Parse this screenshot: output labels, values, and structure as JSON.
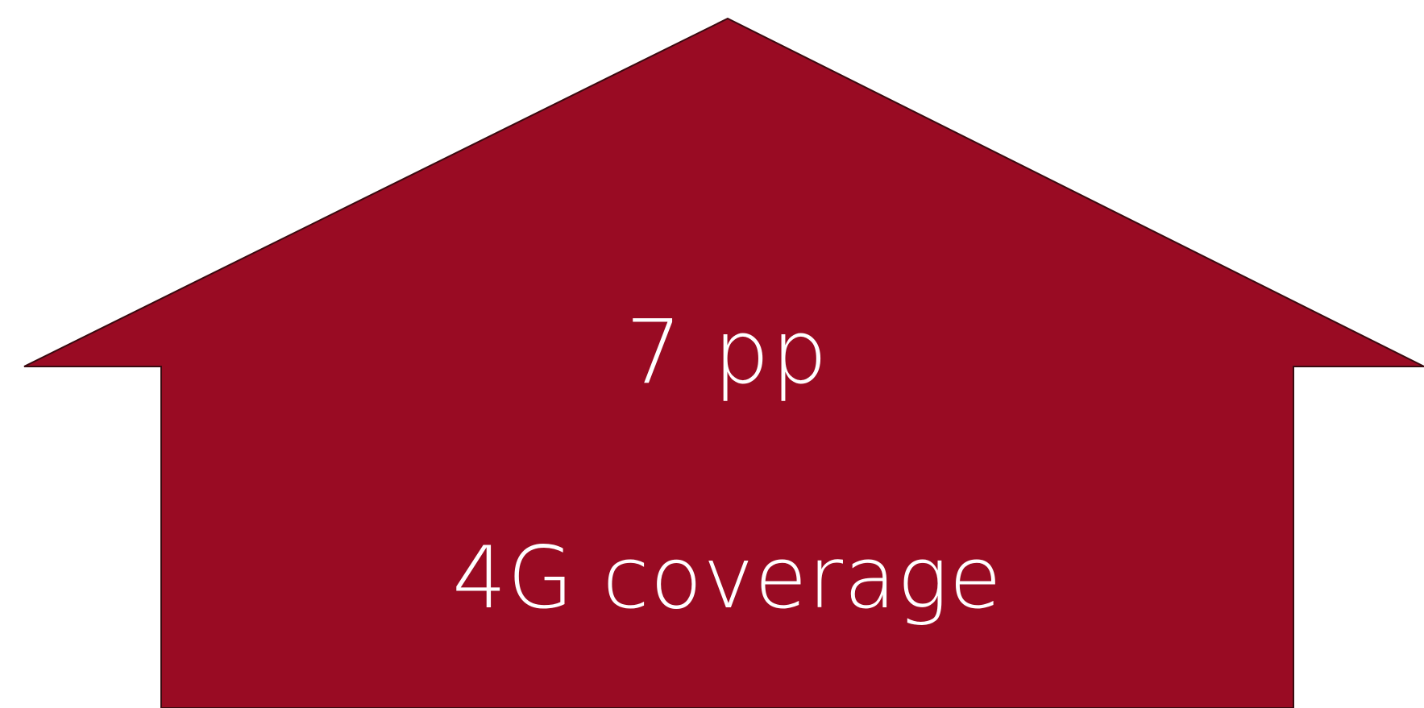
{
  "shape": {
    "type": "up-arrow",
    "fill": "#990b23",
    "stroke": "#3a0a10"
  },
  "value": "7 pp",
  "metric": "4G coverage"
}
